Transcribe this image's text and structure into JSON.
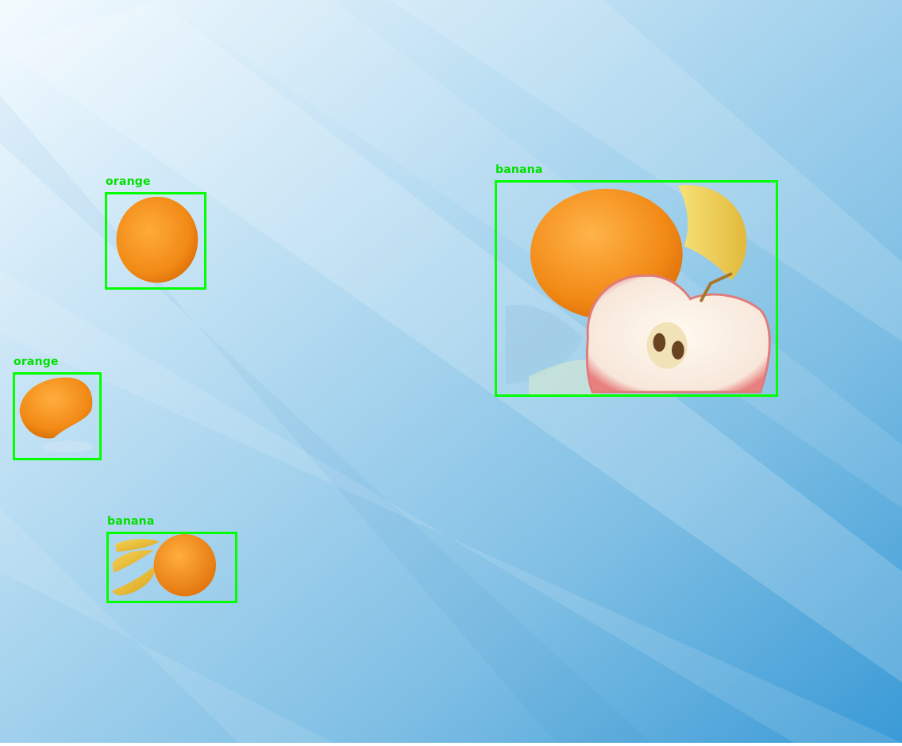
{
  "scene": {
    "background_colors": [
      "#f4fbff",
      "#bfe0f3",
      "#7fbfe4",
      "#3b9bd6"
    ],
    "stripe_color": "#ffffff"
  },
  "detections": [
    {
      "label": "orange",
      "box_color": "#00ff00"
    },
    {
      "label": "orange",
      "box_color": "#00ff00"
    },
    {
      "label": "banana",
      "box_color": "#00ff00"
    },
    {
      "label": "banana",
      "box_color": "#00ff00"
    }
  ],
  "fruit_colors": {
    "orange": "#f08a1a",
    "banana": "#f2c843",
    "apple_flesh": "#fbf1e4",
    "apple_skin": "#e26a6a"
  }
}
